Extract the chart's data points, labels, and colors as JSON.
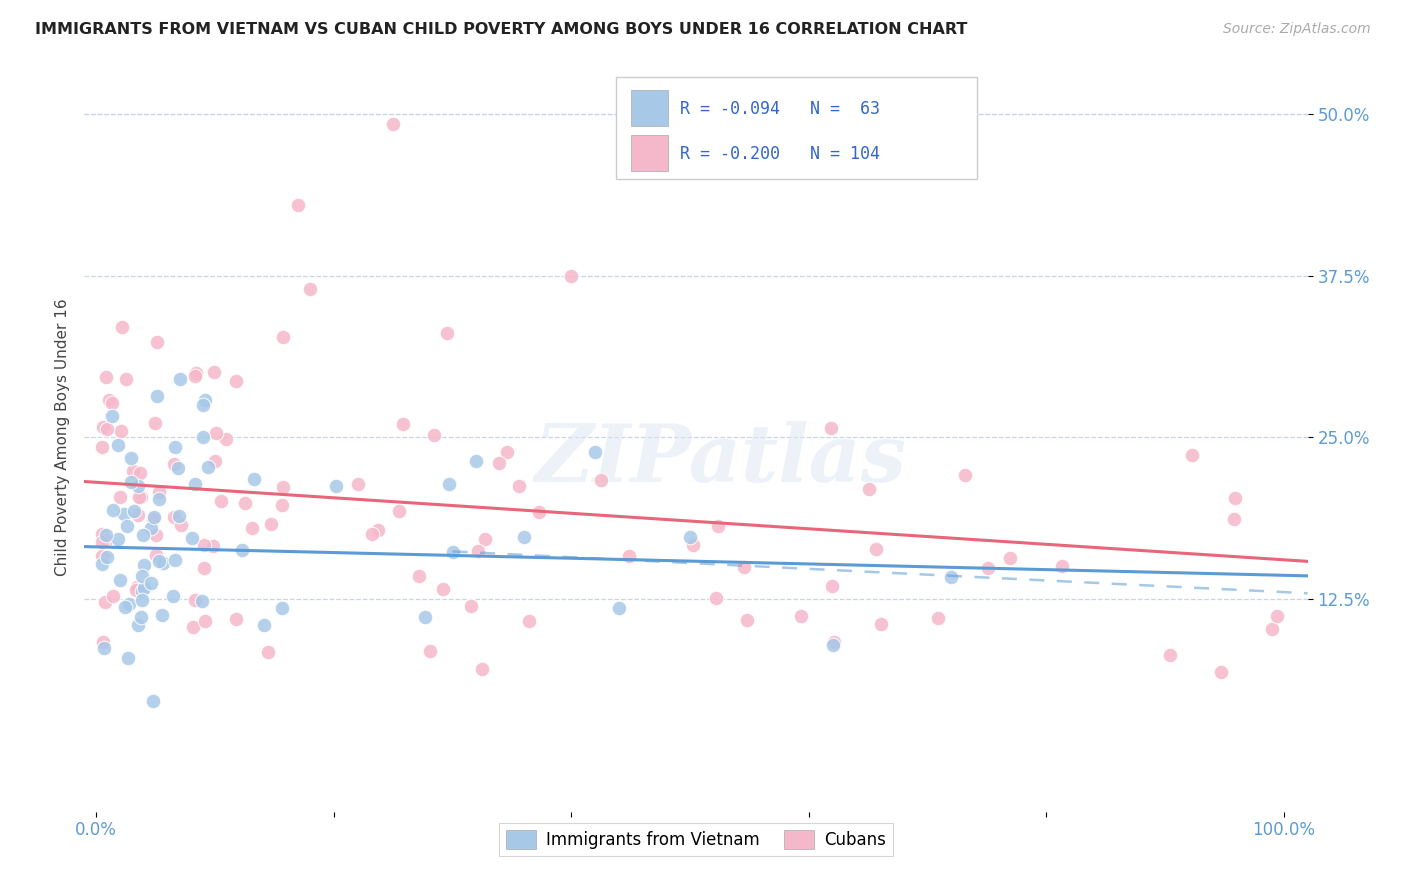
{
  "title": "IMMIGRANTS FROM VIETNAM VS CUBAN CHILD POVERTY AMONG BOYS UNDER 16 CORRELATION CHART",
  "source": "Source: ZipAtlas.com",
  "ylabel": "Child Poverty Among Boys Under 16",
  "xlim": [
    -0.01,
    1.02
  ],
  "ylim": [
    -0.04,
    0.54
  ],
  "xtick_positions": [
    0.0,
    0.2,
    0.4,
    0.6,
    0.8,
    1.0
  ],
  "xticklabels": [
    "0.0%",
    "",
    "",
    "",
    "",
    "100.0%"
  ],
  "ytick_positions": [
    0.125,
    0.25,
    0.375,
    0.5
  ],
  "ytick_labels": [
    "12.5%",
    "25.0%",
    "37.5%",
    "50.0%"
  ],
  "vietnam_R": -0.094,
  "vietnam_N": 63,
  "cuba_R": -0.2,
  "cuba_N": 104,
  "vietnam_color": "#a8c8e8",
  "cuba_color": "#f5b8ca",
  "vietnam_line_color": "#5b9bd5",
  "cuba_line_color": "#e8667a",
  "watermark": "ZIPatlas",
  "legend_label_vietnam": "Immigrants from Vietnam",
  "legend_label_cuba": "Cubans",
  "vietnam_intercept": 0.165,
  "vietnam_slope": -0.022,
  "cuba_intercept": 0.215,
  "cuba_slope": -0.06,
  "dash_intercept": 0.175,
  "dash_slope": -0.045
}
